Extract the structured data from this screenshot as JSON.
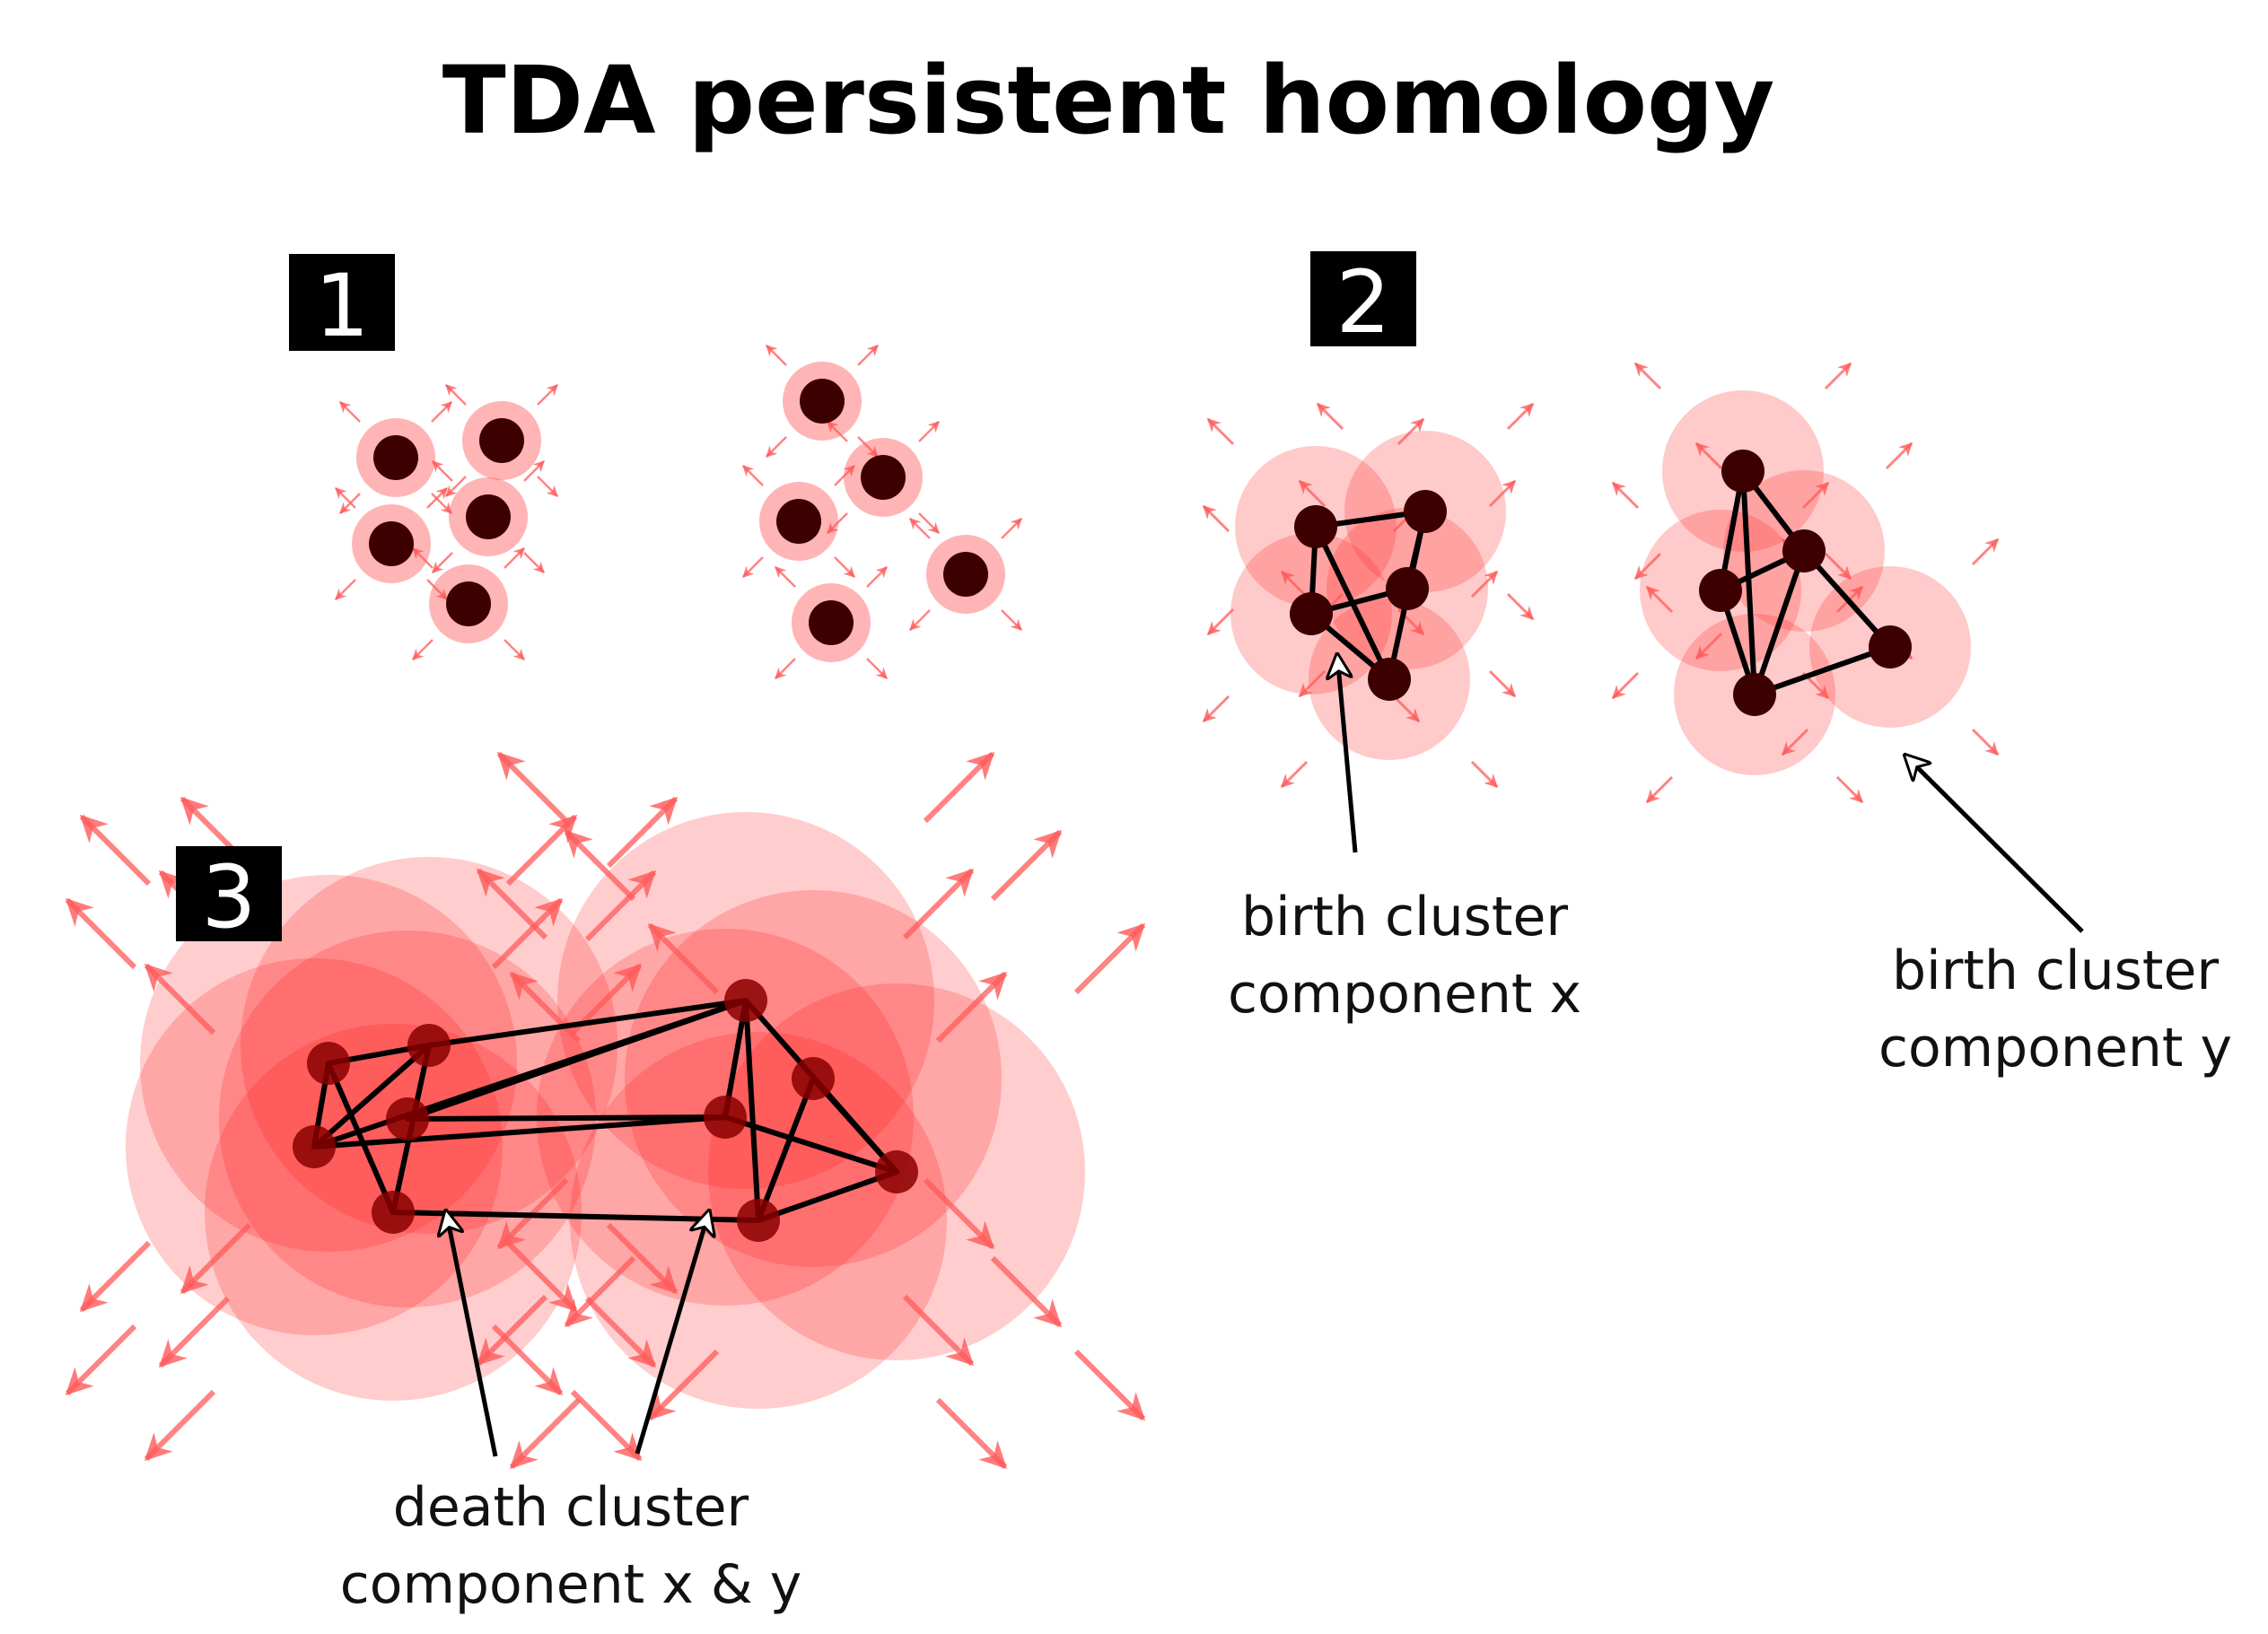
{
  "title": "TDA persistent homology",
  "colors": {
    "disk": "#ff2a2a",
    "disk_dense": "#ff1a1a",
    "node": "#3d0000",
    "node_large": "#8a0000",
    "edge": "#000000",
    "arrow": "#ff5a5a"
  },
  "panels": [
    {
      "label": "1",
      "clusters": [
        {
          "points": [
            [
              441,
              510
            ],
            [
              559,
              491
            ],
            [
              436,
              606
            ],
            [
              544,
              576
            ],
            [
              522,
              673
            ]
          ]
        },
        {
          "points": [
            [
              916,
              447
            ],
            [
              984,
              532
            ],
            [
              890,
              581
            ],
            [
              1076,
              640
            ],
            [
              926,
              694
            ]
          ]
        }
      ]
    },
    {
      "label": "2",
      "clusters": [
        {
          "points": [
            [
              1466,
              587
            ],
            [
              1588,
              570
            ],
            [
              1568,
              656
            ],
            [
              1461,
              684
            ],
            [
              1548,
              757
            ]
          ],
          "edges": [
            [
              0,
              1
            ],
            [
              0,
              3
            ],
            [
              0,
              4
            ],
            [
              1,
              2
            ],
            [
              1,
              4
            ],
            [
              2,
              3
            ],
            [
              3,
              4
            ]
          ]
        },
        {
          "points": [
            [
              1942,
              525
            ],
            [
              2010,
              614
            ],
            [
              1917,
              658
            ],
            [
              2106,
              721
            ],
            [
              1955,
              774
            ]
          ],
          "edges": [
            [
              0,
              1
            ],
            [
              0,
              2
            ],
            [
              1,
              2
            ],
            [
              1,
              3
            ],
            [
              1,
              4
            ],
            [
              2,
              4
            ],
            [
              3,
              4
            ],
            [
              0,
              4
            ]
          ]
        }
      ],
      "captions": [
        {
          "lines": [
            "birth cluster",
            "component x"
          ]
        },
        {
          "lines": [
            "birth cluster",
            "component y"
          ]
        }
      ]
    },
    {
      "label": "3",
      "points": [
        [
          366,
          1185
        ],
        [
          478,
          1165
        ],
        [
          454,
          1247
        ],
        [
          350,
          1278
        ],
        [
          438,
          1351
        ],
        [
          831,
          1115
        ],
        [
          906,
          1202
        ],
        [
          808,
          1245
        ],
        [
          999,
          1306
        ],
        [
          845,
          1360
        ]
      ],
      "edges": [
        [
          0,
          1
        ],
        [
          0,
          3
        ],
        [
          0,
          4
        ],
        [
          1,
          3
        ],
        [
          1,
          4
        ],
        [
          2,
          7
        ],
        [
          3,
          5
        ],
        [
          3,
          7
        ],
        [
          4,
          9
        ],
        [
          5,
          7
        ],
        [
          5,
          9
        ],
        [
          5,
          8
        ],
        [
          6,
          8
        ],
        [
          6,
          9
        ],
        [
          7,
          8
        ],
        [
          8,
          9
        ],
        [
          1,
          5
        ],
        [
          2,
          5
        ]
      ],
      "caption": {
        "lines": [
          "death cluster",
          "component x & y"
        ]
      }
    }
  ]
}
